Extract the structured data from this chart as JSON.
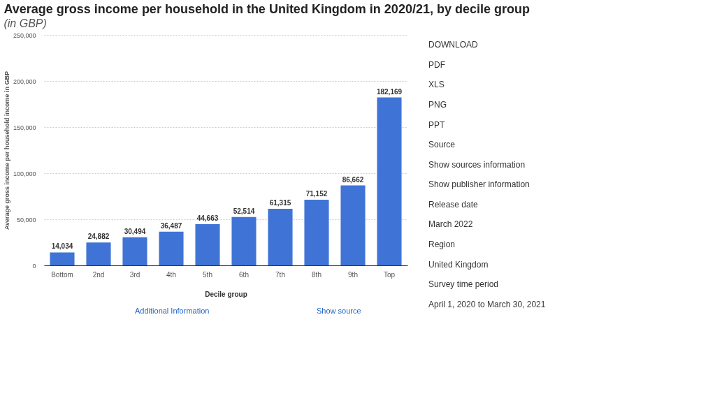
{
  "chart_data": [
    {
      "type": "bar",
      "title": "Average gross income per household in the United Kingdom in 2020/21, by decile group",
      "subtitle": "(in GBP)",
      "xlabel": "Decile group",
      "ylabel": "Average gross income per household income in GBP",
      "categories": [
        "Bottom",
        "2nd",
        "3rd",
        "4th",
        "5th",
        "6th",
        "7th",
        "8th",
        "9th",
        "Top"
      ],
      "values": [
        14034,
        24882,
        30494,
        36487,
        44663,
        52514,
        61315,
        71152,
        86662,
        182169
      ],
      "color": "#3f74d6",
      "ylim": [
        0,
        250000
      ],
      "yticks": [
        0,
        {
          "value": 50000,
          "label": "50,000"
        },
        {
          "value": 100000,
          "label": "100,000"
        },
        {
          "value": 150000,
          "label": "150,000"
        },
        {
          "value": 200000,
          "label": "200,000"
        },
        {
          "value": 250000,
          "label": "250,000"
        }
      ],
      "grid": "y",
      "value_labels": [
        "14,034",
        "24,882",
        "30,494",
        "36,487",
        "44,663",
        "52,514",
        "61,315",
        "71,152",
        "86,662",
        "182,169"
      ],
      "annotations": [
        "Additional Information",
        "Show source"
      ]
    },
    {
      "type": "other",
      "annotations": [
        "DOWNLOAD",
        "PDF",
        "XLS",
        "PNG",
        "PPT",
        "Source",
        "Show sources information",
        "Show publisher information",
        "Release date",
        "March 2022",
        "Region",
        "United Kingdom",
        "Survey time period",
        "April 1, 2020 to March 30, 2021"
      ]
    }
  ]
}
